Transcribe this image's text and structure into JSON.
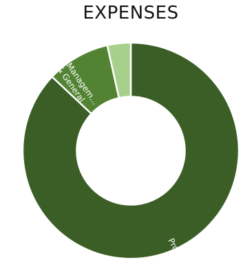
{
  "chart_data": {
    "type": "pie",
    "title": "EXPENSES",
    "hole": 0.5,
    "slices": [
      {
        "label": "Program",
        "value": 87,
        "color": "#3b5e26"
      },
      {
        "label": "Managem... & General",
        "value": 9.5,
        "color": "#518332"
      },
      {
        "label": "",
        "value": 3.5,
        "color": "#a7d08c"
      }
    ],
    "slice_labels": {
      "program": "Program",
      "management_line1": "Managem...",
      "management_line2": "& General"
    }
  }
}
